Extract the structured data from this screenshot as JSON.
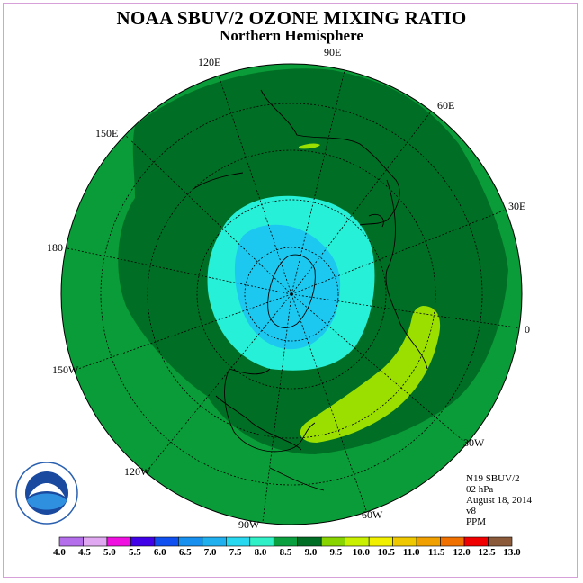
{
  "header": {
    "title": "NOAA SBUV/2 OZONE MIXING RATIO",
    "subtitle": "Northern Hemisphere"
  },
  "map": {
    "projection": "polar-stereographic",
    "longitude_labels": [
      "90E",
      "60E",
      "30E",
      "0",
      "30W",
      "60W",
      "90W",
      "120W",
      "150W",
      "180",
      "150E",
      "120E"
    ],
    "field_colors": {
      "level_8.0_8.5": "#0a9c38",
      "level_8.5_9.0": "#006f25",
      "level_9.0_9.5": "#9bdf00",
      "level_7.5_8.0": "#27f0d8",
      "level_7.0_7.5": "#1cc8f0"
    },
    "features": [
      {
        "name": "polar-low-core",
        "range": "7.0-7.5"
      },
      {
        "name": "polar-ring",
        "range": "7.5-8.0"
      },
      {
        "name": "atlantic-maximum",
        "range": "9.0-9.5"
      },
      {
        "name": "siberian-maximum",
        "range": "9.0-9.5"
      }
    ]
  },
  "info": {
    "satellite": "N19 SBUV/2",
    "level": "02 hPa",
    "date": "August 18, 2014",
    "version": "v8",
    "units": "PPM"
  },
  "logo": {
    "text": "NOAA",
    "ring_text": "NATIONAL OCEANIC AND ATMOSPHERIC ADMINISTRATION",
    "ring_text_bottom": "U.S. DEPARTMENT OF COMMERCE"
  },
  "colorbar": {
    "ticks": [
      "4.0",
      "4.5",
      "5.0",
      "5.5",
      "6.0",
      "6.5",
      "7.0",
      "7.5",
      "8.0",
      "8.5",
      "9.0",
      "9.5",
      "10.0",
      "10.5",
      "11.0",
      "11.5",
      "12.0",
      "12.5",
      "13.0"
    ],
    "colors": [
      "#b46eec",
      "#e0a8f0",
      "#f010e0",
      "#4000e8",
      "#1050f0",
      "#1890f0",
      "#20b0f0",
      "#28d8f0",
      "#30f0c8",
      "#0aa040",
      "#006f25",
      "#88d400",
      "#c8f000",
      "#f0f000",
      "#f0c800",
      "#f0a000",
      "#f07000",
      "#f00000",
      "#8b5a3a"
    ]
  }
}
